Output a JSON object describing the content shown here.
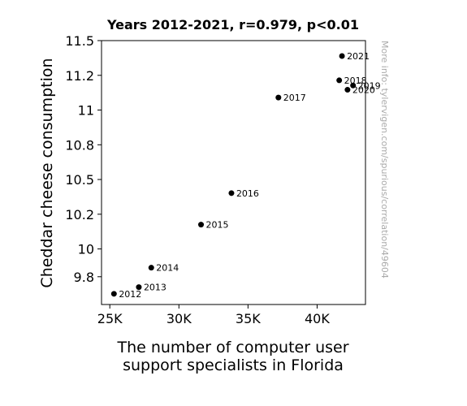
{
  "chart_data": {
    "type": "scatter",
    "title": "Years 2012-2021, r=0.979, p<0.01",
    "xlabel_lines": [
      "The number of computer user",
      "support specialists in Florida"
    ],
    "ylabel": "Cheddar cheese consumption",
    "xlim": [
      24400,
      43500
    ],
    "ylim": [
      9.6,
      11.5
    ],
    "x_ticks": [
      25000,
      30000,
      35000,
      40000
    ],
    "x_tick_labels": [
      "25K",
      "30K",
      "35K",
      "40K"
    ],
    "y_ticks": [
      9.8,
      10,
      10.25,
      10.5,
      10.75,
      11,
      11.25,
      11.5
    ],
    "y_tick_labels": [
      "9.8",
      "10",
      "10.2",
      "10.5",
      "10.8",
      "11",
      "11.2",
      "11.5"
    ],
    "points": [
      {
        "label": "2012",
        "x": 25300,
        "y": 9.677
      },
      {
        "label": "2013",
        "x": 27100,
        "y": 9.725
      },
      {
        "label": "2014",
        "x": 28000,
        "y": 9.865
      },
      {
        "label": "2015",
        "x": 31600,
        "y": 10.175
      },
      {
        "label": "2016",
        "x": 33800,
        "y": 10.402
      },
      {
        "label": "2017",
        "x": 37200,
        "y": 11.09
      },
      {
        "label": "2018",
        "x": 41600,
        "y": 11.214
      },
      {
        "label": "2019",
        "x": 42600,
        "y": 11.177
      },
      {
        "label": "2020",
        "x": 42200,
        "y": 11.146
      },
      {
        "label": "2021",
        "x": 41800,
        "y": 11.389
      }
    ],
    "marker_color": "#000000",
    "grid": false,
    "watermark": "More info: tylervigen.com/spurious/correlation/49604"
  }
}
